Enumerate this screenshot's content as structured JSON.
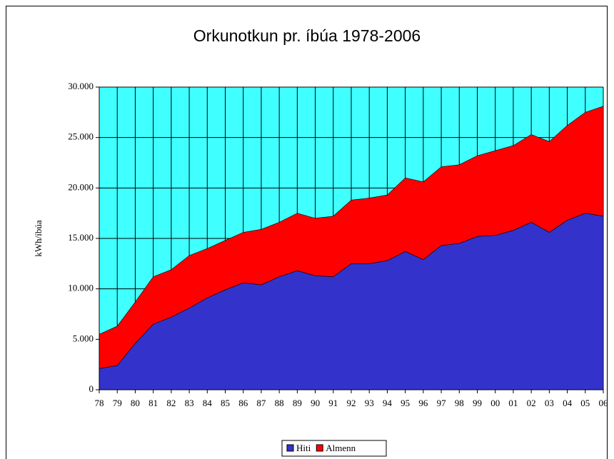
{
  "chart_data": {
    "type": "stacked-area",
    "title": "Orkunotkun pr. íbúa 1978-2006",
    "y_label": "kWh/íbúa",
    "categories": [
      "78",
      "79",
      "80",
      "81",
      "82",
      "83",
      "84",
      "85",
      "86",
      "87",
      "88",
      "89",
      "90",
      "91",
      "92",
      "93",
      "94",
      "95",
      "96",
      "97",
      "98",
      "99",
      "00",
      "01",
      "02",
      "03",
      "04",
      "05",
      "06"
    ],
    "series": [
      {
        "name": "Hiti",
        "color": "#3333cc",
        "values": [
          2100,
          2400,
          4600,
          6500,
          7200,
          8100,
          9100,
          9900,
          10600,
          10400,
          11200,
          11800,
          11300,
          11200,
          12500,
          12500,
          12800,
          13700,
          12900,
          14300,
          14500,
          15200,
          15300,
          15800,
          16600,
          15600,
          16800,
          17500,
          17200
        ]
      },
      {
        "name": "Almenn",
        "color": "#ff0000",
        "values": [
          3400,
          3900,
          4100,
          4700,
          4700,
          5200,
          4900,
          4900,
          5000,
          5500,
          5400,
          5700,
          5700,
          6000,
          6300,
          6500,
          6500,
          7300,
          7700,
          7800,
          7800,
          8000,
          8400,
          8400,
          8700,
          9000,
          9400,
          10000,
          10900
        ]
      }
    ],
    "ylim": [
      0,
      30000
    ],
    "yticks": [
      0,
      {
        "value": 5000,
        "label": "5.000"
      },
      {
        "value": 10000,
        "label": "10.000"
      },
      {
        "value": 15000,
        "label": "15.000"
      },
      {
        "value": 20000,
        "label": "20.000"
      },
      {
        "value": 25000,
        "label": "25.000"
      },
      {
        "value": 30000,
        "label": "30.000"
      }
    ],
    "plot_background": "#40ffff",
    "grid": true,
    "legend": "bottom"
  }
}
